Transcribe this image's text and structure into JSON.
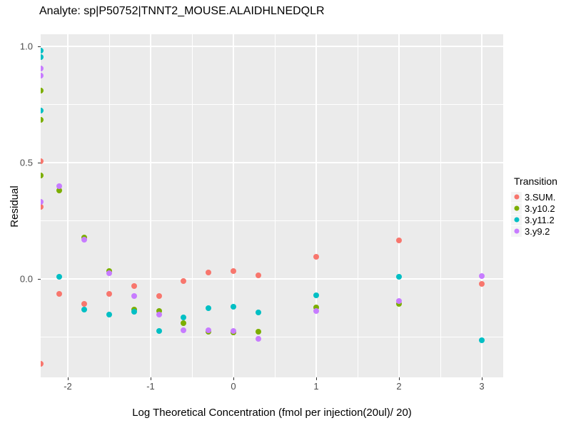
{
  "title": "Analyte: sp|P50752|TNNT2_MOUSE.ALAIDHLNEDQLR",
  "colors": {
    "panel_background": "#EBEBEB",
    "gridline": "#FFFFFF",
    "tick_label": "#4D4D4D",
    "series_red": "#F8766D",
    "series_green": "#7CAE00",
    "series_teal": "#00BFC4",
    "series_purple": "#C77CFF"
  },
  "chart_data": {
    "type": "scatter",
    "title": "Analyte: sp|P50752|TNNT2_MOUSE.ALAIDHLNEDQLR",
    "xlabel": "Log Theoretical Concentration (fmol per injection(20ul)/ 20)",
    "ylabel": "Residual",
    "legend_title": "Transition",
    "legend_position": "right",
    "grid": true,
    "xlim": [
      -2.328,
      3.259
    ],
    "ylim": [
      -0.424,
      1.052
    ],
    "x_ticks": [
      -2,
      -1,
      0,
      1,
      2,
      3
    ],
    "x_tick_labels": [
      "-2",
      "-1",
      "0",
      "1",
      "2",
      "3"
    ],
    "y_ticks": [
      0,
      0.5,
      1
    ],
    "y_tick_labels": [
      "0.0",
      "0.5",
      "1.0"
    ],
    "x_minor_ticks": [
      -1.5,
      -0.5,
      0.5,
      1.5,
      2.5
    ],
    "y_minor_ticks": [
      -0.25,
      0.25,
      0.75
    ],
    "series": [
      {
        "name": "3.SUM.",
        "color": "#F8766D",
        "points": [
          [
            -2.33,
            0.505
          ],
          [
            -2.33,
            0.31
          ],
          [
            -2.33,
            -0.367
          ],
          [
            -2.1,
            -0.064
          ],
          [
            -1.8,
            -0.108
          ],
          [
            -1.5,
            -0.064
          ],
          [
            -1.2,
            -0.03
          ],
          [
            -0.9,
            -0.074
          ],
          [
            -0.6,
            -0.01
          ],
          [
            -0.3,
            0.027
          ],
          [
            0,
            0.034
          ],
          [
            0.3,
            0.016
          ],
          [
            1,
            0.096
          ],
          [
            2,
            0.166
          ],
          [
            3,
            -0.023
          ]
        ]
      },
      {
        "name": "3.y10.2",
        "color": "#7CAE00",
        "points": [
          [
            -2.33,
            0.81
          ],
          [
            -2.33,
            0.685
          ],
          [
            -2.33,
            0.445
          ],
          [
            -2.1,
            0.379
          ],
          [
            -1.8,
            0.176
          ],
          [
            -1.5,
            0.034
          ],
          [
            -1.2,
            -0.131
          ],
          [
            -0.9,
            -0.14
          ],
          [
            -0.6,
            -0.192
          ],
          [
            -0.3,
            -0.229
          ],
          [
            0,
            -0.23
          ],
          [
            0.3,
            -0.228
          ],
          [
            1,
            -0.123
          ],
          [
            2,
            -0.108
          ]
        ]
      },
      {
        "name": "3.y11.2",
        "color": "#00BFC4",
        "points": [
          [
            -2.33,
            0.98
          ],
          [
            -2.33,
            0.955
          ],
          [
            -2.33,
            0.725
          ],
          [
            -2.1,
            0.01
          ],
          [
            -1.8,
            -0.134
          ],
          [
            -1.5,
            -0.153
          ],
          [
            -1.2,
            -0.141
          ],
          [
            -0.9,
            -0.226
          ],
          [
            -0.6,
            -0.167
          ],
          [
            -0.3,
            -0.126
          ],
          [
            0,
            -0.12
          ],
          [
            0.3,
            -0.146
          ],
          [
            1,
            -0.072
          ],
          [
            2,
            0.01
          ],
          [
            3,
            -0.264
          ]
        ]
      },
      {
        "name": "3.y9.2",
        "color": "#C77CFF",
        "points": [
          [
            -2.33,
            0.905
          ],
          [
            -2.33,
            0.875
          ],
          [
            -2.33,
            0.33
          ],
          [
            -2.1,
            0.399
          ],
          [
            -1.8,
            0.168
          ],
          [
            -1.5,
            0.024
          ],
          [
            -1.2,
            -0.074
          ],
          [
            -0.9,
            -0.153
          ],
          [
            -0.6,
            -0.221
          ],
          [
            -0.3,
            -0.222
          ],
          [
            0,
            -0.224
          ],
          [
            0.3,
            -0.259
          ],
          [
            1,
            -0.14
          ],
          [
            2,
            -0.096
          ],
          [
            3,
            0.011
          ]
        ]
      }
    ]
  }
}
